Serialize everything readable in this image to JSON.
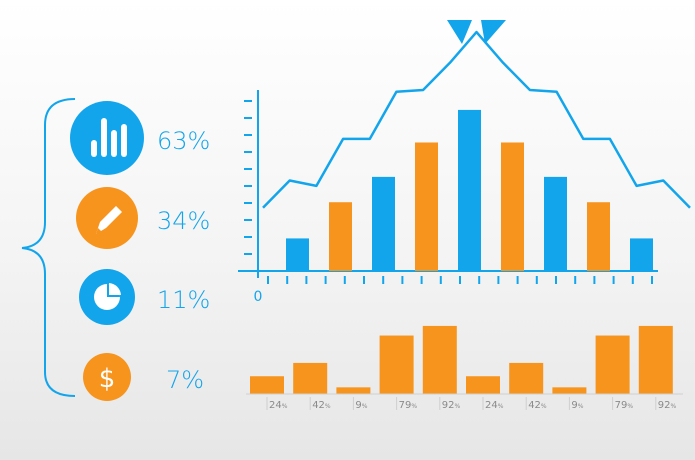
{
  "colors": {
    "blue": "#12a5ec",
    "orange": "#f7941d",
    "axis_blue": "#12a5ec",
    "text_blue": "#12a5ec",
    "gray": "#9a9a9a"
  },
  "stats": [
    {
      "icon": "bar-chart-icon",
      "label": "63%",
      "color": "#12a5ec"
    },
    {
      "icon": "pencil-icon",
      "label": "34%",
      "color": "#f7941d"
    },
    {
      "icon": "pie-chart-icon",
      "label": "11%",
      "color": "#12a5ec"
    },
    {
      "icon": "dollar-icon",
      "label": "7%",
      "color": "#f7941d"
    }
  ],
  "chart_data": [
    {
      "type": "bar",
      "x_tick_label": "0",
      "ylim": [
        0,
        10
      ],
      "values": [
        1.8,
        3.8,
        5.2,
        7.1,
        8.9,
        7.1,
        5.2,
        3.8,
        1.8
      ],
      "bar_colors": [
        "#12a5ec",
        "#f7941d",
        "#12a5ec",
        "#f7941d",
        "#12a5ec",
        "#f7941d",
        "#12a5ec",
        "#f7941d",
        "#12a5ec"
      ],
      "line": [
        3.5,
        5.0,
        4.7,
        7.3,
        7.3,
        9.9,
        10.0,
        11.5,
        13.2,
        11.5,
        10.0,
        9.9,
        7.3,
        7.3,
        4.7,
        5.0,
        3.5
      ]
    },
    {
      "type": "bar",
      "categories": [
        "24",
        "42",
        "9",
        "79",
        "92",
        "24",
        "42",
        "9",
        "79",
        "92"
      ],
      "values": [
        24,
        42,
        9,
        79,
        92,
        24,
        42,
        9,
        79,
        92
      ],
      "unit": "%",
      "color": "#f7941d"
    }
  ]
}
